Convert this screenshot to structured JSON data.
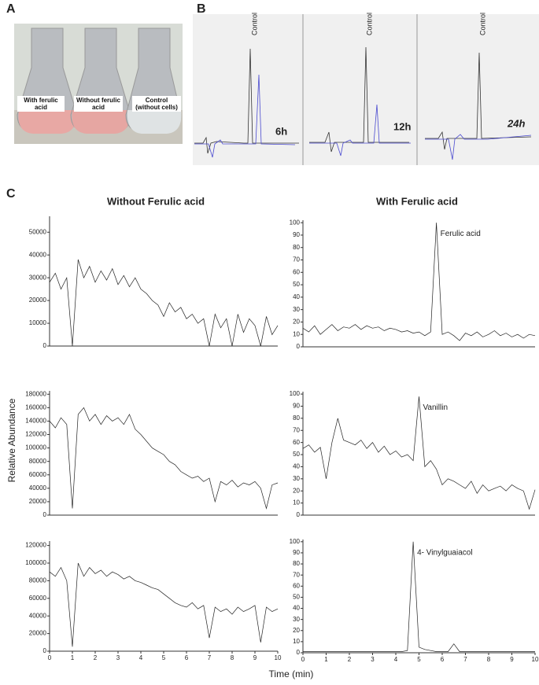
{
  "panel_labels": [
    "A",
    "B",
    "C"
  ],
  "photo": {
    "labels": [
      "With ferulic acid",
      "Without ferulic acid",
      "Control (without cells)"
    ]
  },
  "hplc": [
    {
      "peak_label": "Control",
      "time": "6h"
    },
    {
      "peak_label": "Control",
      "time": "12h"
    },
    {
      "peak_label": "Control",
      "time": "24h"
    }
  ],
  "columns": [
    "Without Ferulic acid",
    "With Ferulic acid"
  ],
  "y_label": "Relative Abundance",
  "x_label": "Time (min)",
  "chart_data": [
    {
      "type": "line",
      "xlim": [
        0,
        10
      ],
      "ylim": [
        0,
        57000
      ],
      "yticks": [
        0,
        10000,
        20000,
        30000,
        40000,
        50000
      ],
      "x": [
        0,
        0.25,
        0.5,
        0.75,
        1,
        1.25,
        1.5,
        1.75,
        2,
        2.25,
        2.5,
        2.75,
        3,
        3.25,
        3.5,
        3.75,
        4,
        4.25,
        4.5,
        4.75,
        5,
        5.25,
        5.5,
        5.75,
        6,
        6.25,
        6.5,
        6.75,
        7,
        7.25,
        7.5,
        7.75,
        8,
        8.25,
        8.5,
        8.75,
        9,
        9.25,
        9.5,
        9.75,
        10
      ],
      "color": "#222",
      "values": [
        28000,
        32000,
        25000,
        30000,
        0,
        38000,
        30000,
        35000,
        28000,
        33000,
        29000,
        34000,
        27000,
        31000,
        26000,
        30000,
        25000,
        23000,
        20000,
        18000,
        13000,
        19000,
        15000,
        17000,
        12000,
        14000,
        10000,
        12000,
        0,
        14000,
        8000,
        12000,
        0,
        14000,
        6000,
        12000,
        9000,
        0,
        13000,
        5000,
        9000
      ]
    },
    {
      "type": "line",
      "xlim": [
        0,
        10
      ],
      "ylim": [
        0,
        102
      ],
      "yticks": [
        0,
        10,
        20,
        30,
        40,
        50,
        60,
        70,
        80,
        90,
        100
      ],
      "annotation": "Ferulic acid",
      "x": [
        0,
        0.25,
        0.5,
        0.75,
        1,
        1.25,
        1.5,
        1.75,
        2,
        2.25,
        2.5,
        2.75,
        3,
        3.25,
        3.5,
        3.75,
        4,
        4.25,
        4.5,
        4.75,
        5,
        5.25,
        5.5,
        5.75,
        6,
        6.25,
        6.5,
        6.75,
        7,
        7.25,
        7.5,
        7.75,
        8,
        8.25,
        8.5,
        8.75,
        9,
        9.25,
        9.5,
        9.75,
        10
      ],
      "color": "#222",
      "values": [
        15,
        12,
        17,
        10,
        14,
        18,
        13,
        16,
        15,
        18,
        14,
        17,
        15,
        16,
        13,
        15,
        14,
        12,
        13,
        11,
        12,
        9,
        12,
        100,
        10,
        12,
        9,
        5,
        11,
        9,
        12,
        8,
        10,
        13,
        9,
        11,
        8,
        10,
        7,
        10,
        9
      ]
    },
    {
      "type": "line",
      "xlim": [
        0,
        10
      ],
      "ylim": [
        0,
        185000
      ],
      "yticks": [
        0,
        20000,
        40000,
        60000,
        80000,
        100000,
        120000,
        140000,
        160000,
        180000
      ],
      "x": [
        0,
        0.25,
        0.5,
        0.75,
        1,
        1.25,
        1.5,
        1.75,
        2,
        2.25,
        2.5,
        2.75,
        3,
        3.25,
        3.5,
        3.75,
        4,
        4.25,
        4.5,
        4.75,
        5,
        5.25,
        5.5,
        5.75,
        6,
        6.25,
        6.5,
        6.75,
        7,
        7.25,
        7.5,
        7.75,
        8,
        8.25,
        8.5,
        8.75,
        9,
        9.25,
        9.5,
        9.75,
        10
      ],
      "color": "#222",
      "values": [
        140000,
        130000,
        145000,
        135000,
        10000,
        150000,
        160000,
        140000,
        150000,
        135000,
        148000,
        140000,
        145000,
        135000,
        150000,
        128000,
        120000,
        110000,
        100000,
        95000,
        90000,
        80000,
        75000,
        65000,
        60000,
        55000,
        58000,
        50000,
        55000,
        20000,
        50000,
        45000,
        52000,
        42000,
        48000,
        45000,
        50000,
        40000,
        10000,
        45000,
        48000
      ]
    },
    {
      "type": "line",
      "xlim": [
        0,
        10
      ],
      "ylim": [
        0,
        102
      ],
      "yticks": [
        0,
        10,
        20,
        30,
        40,
        50,
        60,
        70,
        80,
        90,
        100
      ],
      "annotation": "Vanillin",
      "x": [
        0,
        0.25,
        0.5,
        0.75,
        1,
        1.25,
        1.5,
        1.75,
        2,
        2.25,
        2.5,
        2.75,
        3,
        3.25,
        3.5,
        3.75,
        4,
        4.25,
        4.5,
        4.75,
        5,
        5.25,
        5.5,
        5.75,
        6,
        6.25,
        6.5,
        6.75,
        7,
        7.25,
        7.5,
        7.75,
        8,
        8.25,
        8.5,
        8.75,
        9,
        9.25,
        9.5,
        9.75,
        10
      ],
      "color": "#222",
      "values": [
        55,
        58,
        52,
        56,
        30,
        60,
        80,
        62,
        60,
        58,
        62,
        55,
        60,
        52,
        57,
        50,
        53,
        48,
        50,
        45,
        98,
        40,
        45,
        38,
        25,
        30,
        28,
        25,
        22,
        28,
        18,
        25,
        20,
        22,
        24,
        20,
        25,
        22,
        20,
        5,
        21
      ]
    },
    {
      "type": "line",
      "xlim": [
        0,
        10
      ],
      "ylim": [
        0,
        125000
      ],
      "yticks": [
        0,
        20000,
        40000,
        60000,
        80000,
        100000,
        120000
      ],
      "xticks": [
        0,
        1,
        2,
        3,
        4,
        5,
        6,
        7,
        8,
        9,
        10
      ],
      "x": [
        0,
        0.25,
        0.5,
        0.75,
        1,
        1.25,
        1.5,
        1.75,
        2,
        2.25,
        2.5,
        2.75,
        3,
        3.25,
        3.5,
        3.75,
        4,
        4.25,
        4.5,
        4.75,
        5,
        5.25,
        5.5,
        5.75,
        6,
        6.25,
        6.5,
        6.75,
        7,
        7.25,
        7.5,
        7.75,
        8,
        8.25,
        8.5,
        8.75,
        9,
        9.25,
        9.5,
        9.75,
        10
      ],
      "color": "#222",
      "values": [
        90000,
        85000,
        95000,
        80000,
        5000,
        100000,
        85000,
        95000,
        88000,
        92000,
        85000,
        90000,
        87000,
        82000,
        85000,
        80000,
        78000,
        75000,
        72000,
        70000,
        65000,
        60000,
        55000,
        52000,
        50000,
        55000,
        48000,
        52000,
        15000,
        50000,
        45000,
        48000,
        42000,
        50000,
        45000,
        48000,
        52000,
        10000,
        50000,
        45000,
        48000
      ]
    },
    {
      "type": "line",
      "xlim": [
        0,
        10
      ],
      "ylim": [
        0,
        102
      ],
      "yticks": [
        0,
        10,
        20,
        30,
        40,
        50,
        60,
        70,
        80,
        90,
        100
      ],
      "xticks": [
        0,
        1,
        2,
        3,
        4,
        5,
        6,
        7,
        8,
        9,
        10
      ],
      "annotation": "4- Vinylguaiacol",
      "x": [
        0,
        0.25,
        0.5,
        0.75,
        1,
        1.25,
        1.5,
        1.75,
        2,
        2.25,
        2.5,
        2.75,
        3,
        3.25,
        3.5,
        3.75,
        4,
        4.25,
        4.5,
        4.75,
        5,
        5.25,
        5.5,
        5.75,
        6,
        6.25,
        6.5,
        6.75,
        7,
        7.25,
        7.5,
        7.75,
        8,
        8.25,
        8.5,
        8.75,
        9,
        9.25,
        9.5,
        9.75,
        10
      ],
      "color": "#222",
      "values": [
        1,
        1,
        1,
        1,
        1,
        1,
        1,
        1,
        1,
        1,
        1,
        1,
        1,
        1,
        1,
        1,
        1,
        1,
        2,
        100,
        5,
        3,
        2,
        1,
        1,
        1,
        8,
        1,
        1,
        1,
        1,
        1,
        1,
        1,
        1,
        1,
        1,
        1,
        1,
        1,
        1
      ]
    }
  ]
}
